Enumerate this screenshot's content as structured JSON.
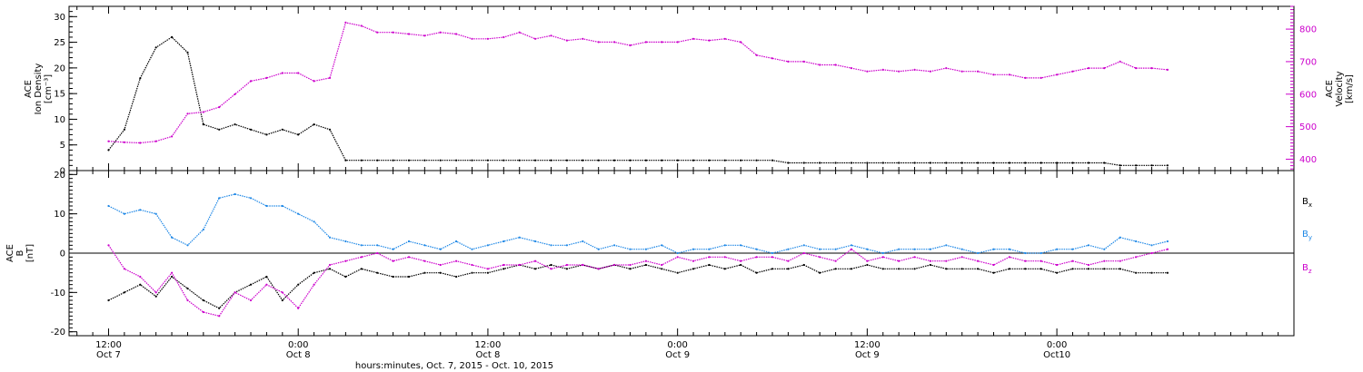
{
  "chart_data": [
    {
      "panel": "top",
      "type": "scatter",
      "ylabel_lines": [
        "ACE",
        "Ion Density",
        "[cm⁻³]"
      ],
      "yticks": [
        "0",
        "5",
        "10",
        "15",
        "20",
        "25",
        "30"
      ],
      "ylim": [
        0,
        32
      ],
      "y2label_lines": [
        "ACE",
        "Velocity",
        "[km/s]"
      ],
      "y2ticks": [
        "400",
        "500",
        "600",
        "700",
        "800"
      ],
      "y2lim": [
        365,
        870
      ],
      "colors": {
        "density": "#000000",
        "velocity": "#cc00cc"
      },
      "series": [
        {
          "axis": "left",
          "color": "#000000",
          "x_hours": [
            0,
            1,
            2,
            3,
            4,
            5,
            6,
            7,
            8,
            9,
            10,
            11,
            12,
            13,
            14,
            15,
            16,
            17,
            18,
            19,
            20,
            21,
            22,
            23,
            24,
            25,
            26,
            27,
            28,
            29,
            30,
            31,
            32,
            33,
            34,
            35,
            36,
            37,
            38,
            39,
            40,
            41,
            42,
            43,
            44,
            45,
            46,
            47,
            48,
            49,
            50,
            51,
            52,
            53,
            54,
            55,
            56,
            57,
            58,
            59,
            60,
            61,
            62,
            63,
            64,
            65,
            66,
            67
          ],
          "y": [
            4,
            8,
            18,
            24,
            26,
            23,
            9,
            8,
            9,
            8,
            7,
            8,
            7,
            9,
            8,
            2,
            2,
            2,
            2,
            2,
            2,
            2,
            2,
            2,
            2,
            2,
            2,
            2,
            2,
            2,
            2,
            2,
            2,
            2,
            2,
            2,
            2,
            2,
            2,
            2,
            2,
            2,
            2,
            1.5,
            1.5,
            1.5,
            1.5,
            1.5,
            1.5,
            1.5,
            1.5,
            1.5,
            1.5,
            1.5,
            1.5,
            1.5,
            1.5,
            1.5,
            1.5,
            1.5,
            1.5,
            1.5,
            1.5,
            1.5,
            1,
            1,
            1,
            1
          ]
        },
        {
          "axis": "right",
          "color": "#cc00cc",
          "x_hours": [
            0,
            1,
            2,
            3,
            4,
            5,
            6,
            7,
            8,
            9,
            10,
            11,
            12,
            13,
            14,
            15,
            16,
            17,
            18,
            19,
            20,
            21,
            22,
            23,
            24,
            25,
            26,
            27,
            28,
            29,
            30,
            31,
            32,
            33,
            34,
            35,
            36,
            37,
            38,
            39,
            40,
            41,
            42,
            43,
            44,
            45,
            46,
            47,
            48,
            49,
            50,
            51,
            52,
            53,
            54,
            55,
            56,
            57,
            58,
            59,
            60,
            61,
            62,
            63,
            64,
            65,
            66,
            67
          ],
          "y": [
            455,
            452,
            450,
            455,
            470,
            540,
            545,
            560,
            600,
            640,
            650,
            665,
            665,
            640,
            650,
            820,
            810,
            790,
            790,
            785,
            780,
            790,
            785,
            770,
            770,
            775,
            790,
            770,
            780,
            765,
            770,
            760,
            760,
            750,
            760,
            760,
            760,
            770,
            765,
            770,
            760,
            720,
            710,
            700,
            700,
            690,
            690,
            680,
            670,
            675,
            670,
            675,
            670,
            680,
            670,
            670,
            660,
            660,
            650,
            650,
            660,
            670,
            680,
            680,
            700,
            680,
            680,
            675
          ]
        }
      ]
    },
    {
      "panel": "bottom",
      "type": "scatter",
      "ylabel_lines": [
        "ACE",
        "B",
        "[nT]"
      ],
      "yticks": [
        "-20",
        "-10",
        "0",
        "10",
        "20"
      ],
      "ylim": [
        -21,
        21
      ],
      "zero_line": true,
      "legend_position": "right",
      "series": [
        {
          "name": "Bx",
          "color": "#000000",
          "x_hours": [
            0,
            1,
            2,
            3,
            4,
            5,
            6,
            7,
            8,
            9,
            10,
            11,
            12,
            13,
            14,
            15,
            16,
            17,
            18,
            19,
            20,
            21,
            22,
            23,
            24,
            25,
            26,
            27,
            28,
            29,
            30,
            31,
            32,
            33,
            34,
            35,
            36,
            37,
            38,
            39,
            40,
            41,
            42,
            43,
            44,
            45,
            46,
            47,
            48,
            49,
            50,
            51,
            52,
            53,
            54,
            55,
            56,
            57,
            58,
            59,
            60,
            61,
            62,
            63,
            64,
            65,
            66,
            67
          ],
          "y": [
            -12,
            -10,
            -8,
            -11,
            -6,
            -9,
            -12,
            -14,
            -10,
            -8,
            -6,
            -12,
            -8,
            -5,
            -4,
            -6,
            -4,
            -5,
            -6,
            -6,
            -5,
            -5,
            -6,
            -5,
            -5,
            -4,
            -3,
            -4,
            -3,
            -4,
            -3,
            -4,
            -3,
            -4,
            -3,
            -4,
            -5,
            -4,
            -3,
            -4,
            -3,
            -5,
            -4,
            -4,
            -3,
            -5,
            -4,
            -4,
            -3,
            -4,
            -4,
            -4,
            -3,
            -4,
            -4,
            -4,
            -5,
            -4,
            -4,
            -4,
            -5,
            -4,
            -4,
            -4,
            -4,
            -5,
            -5,
            -5
          ]
        },
        {
          "name": "By",
          "color": "#1f88e6",
          "x_hours": [
            0,
            1,
            2,
            3,
            4,
            5,
            6,
            7,
            8,
            9,
            10,
            11,
            12,
            13,
            14,
            15,
            16,
            17,
            18,
            19,
            20,
            21,
            22,
            23,
            24,
            25,
            26,
            27,
            28,
            29,
            30,
            31,
            32,
            33,
            34,
            35,
            36,
            37,
            38,
            39,
            40,
            41,
            42,
            43,
            44,
            45,
            46,
            47,
            48,
            49,
            50,
            51,
            52,
            53,
            54,
            55,
            56,
            57,
            58,
            59,
            60,
            61,
            62,
            63,
            64,
            65,
            66,
            67
          ],
          "y": [
            12,
            10,
            11,
            10,
            4,
            2,
            6,
            14,
            15,
            14,
            12,
            12,
            10,
            8,
            4,
            3,
            2,
            2,
            1,
            3,
            2,
            1,
            3,
            1,
            2,
            3,
            4,
            3,
            2,
            2,
            3,
            1,
            2,
            1,
            1,
            2,
            0,
            1,
            1,
            2,
            2,
            1,
            0,
            1,
            2,
            1,
            1,
            2,
            1,
            0,
            1,
            1,
            1,
            2,
            1,
            0,
            1,
            1,
            0,
            0,
            1,
            1,
            2,
            1,
            4,
            3,
            2,
            3
          ]
        },
        {
          "name": "Bz",
          "color": "#cc00cc",
          "x_hours": [
            0,
            1,
            2,
            3,
            4,
            5,
            6,
            7,
            8,
            9,
            10,
            11,
            12,
            13,
            14,
            15,
            16,
            17,
            18,
            19,
            20,
            21,
            22,
            23,
            24,
            25,
            26,
            27,
            28,
            29,
            30,
            31,
            32,
            33,
            34,
            35,
            36,
            37,
            38,
            39,
            40,
            41,
            42,
            43,
            44,
            45,
            46,
            47,
            48,
            49,
            50,
            51,
            52,
            53,
            54,
            55,
            56,
            57,
            58,
            59,
            60,
            61,
            62,
            63,
            64,
            65,
            66,
            67
          ],
          "y": [
            2,
            -4,
            -6,
            -10,
            -5,
            -12,
            -15,
            -16,
            -10,
            -12,
            -8,
            -10,
            -14,
            -8,
            -3,
            -2,
            -1,
            0,
            -2,
            -1,
            -2,
            -3,
            -2,
            -3,
            -4,
            -3,
            -3,
            -2,
            -4,
            -3,
            -3,
            -4,
            -3,
            -3,
            -2,
            -3,
            -1,
            -2,
            -1,
            -1,
            -2,
            -1,
            -1,
            -2,
            0,
            -1,
            -2,
            1,
            -2,
            -1,
            -2,
            -1,
            -2,
            -2,
            -1,
            -2,
            -3,
            -1,
            -2,
            -2,
            -3,
            -2,
            -3,
            -2,
            -2,
            -1,
            0,
            1
          ]
        }
      ]
    }
  ],
  "legend": {
    "bx_base": "B",
    "bx_sub": "x",
    "by_base": "B",
    "by_sub": "y",
    "bz_base": "B",
    "bz_sub": "z"
  },
  "x_axis": {
    "xlim_hours": [
      -2.5,
      75
    ],
    "ticks": [
      {
        "hours": 0,
        "time": "12:00",
        "date": "Oct 7"
      },
      {
        "hours": 12,
        "time": "0:00",
        "date": "Oct 8"
      },
      {
        "hours": 24,
        "time": "12:00",
        "date": "Oct 8"
      },
      {
        "hours": 36,
        "time": "0:00",
        "date": "Oct 9"
      },
      {
        "hours": 48,
        "time": "12:00",
        "date": "Oct 9"
      },
      {
        "hours": 60,
        "time": "0:00",
        "date": "Oct10"
      }
    ],
    "label": "hours:minutes, Oct.  7, 2015 - Oct. 10, 2015"
  }
}
